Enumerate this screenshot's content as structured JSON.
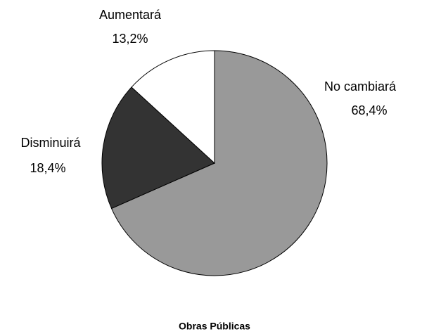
{
  "chart_data": {
    "type": "pie",
    "title": "Obras Públicas",
    "categories": [
      "No cambiará",
      "Disminuirá",
      "Aumentará"
    ],
    "values": [
      68.4,
      18.4,
      13.2
    ],
    "value_labels": [
      "68,4%",
      "18,4%",
      "13,2%"
    ],
    "colors": [
      "#999999",
      "#333333",
      "#ffffff"
    ]
  }
}
